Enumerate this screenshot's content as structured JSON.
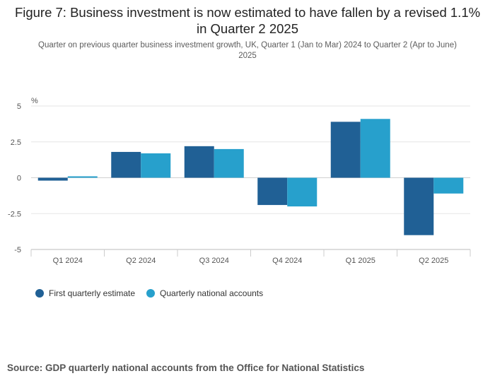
{
  "chart_data": {
    "type": "bar",
    "title": "Figure 7: Business investment is now estimated to have fallen by a revised 1.1% in Quarter 2 2025",
    "subtitle": "Quarter on previous quarter business investment growth, UK, Quarter 1 (Jan to Mar) 2024 to Quarter 2 (Apr to June) 2025",
    "ylabel": "%",
    "xlabel": "",
    "ylim": [
      -5,
      5
    ],
    "yticks": [
      5,
      2.5,
      0,
      -2.5,
      -5
    ],
    "ytick_labels": [
      "5",
      "2.5",
      "0",
      "-2.5",
      "-5"
    ],
    "grid": true,
    "legend_position": "bottom-left",
    "categories": [
      "Q1 2024",
      "Q2 2024",
      "Q3 2024",
      "Q4 2024",
      "Q1 2025",
      "Q2 2025"
    ],
    "series": [
      {
        "name": "First quarterly estimate",
        "color": "#206095",
        "values": [
          -0.2,
          1.8,
          2.2,
          -1.9,
          3.9,
          -4.0
        ]
      },
      {
        "name": "Quarterly national accounts",
        "color": "#27a0cc",
        "values": [
          0.1,
          1.7,
          2.0,
          -2.0,
          4.1,
          -1.1
        ]
      }
    ]
  },
  "source": "Source: GDP quarterly national accounts from the Office for National Statistics"
}
